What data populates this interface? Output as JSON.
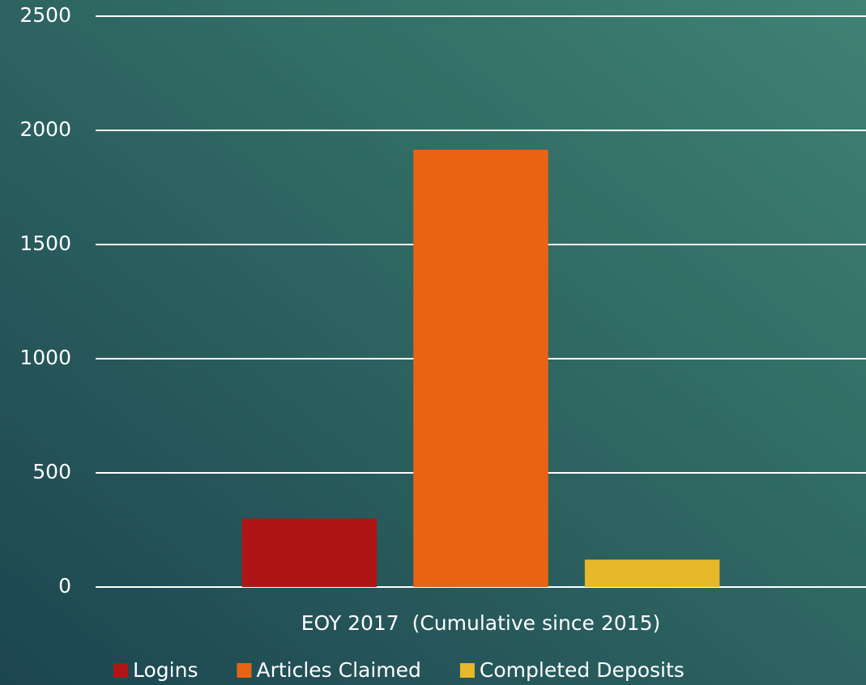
{
  "chart_data": {
    "type": "bar",
    "categories": [
      "EOY 2017  (Cumulative since 2015)"
    ],
    "series": [
      {
        "name": "Logins",
        "color": "#b01515",
        "values": [
          300
        ]
      },
      {
        "name": "Articles Claimed",
        "color": "#e86413",
        "values": [
          1915
        ]
      },
      {
        "name": "Completed Deposits",
        "color": "#e6b82a",
        "values": [
          120
        ]
      }
    ],
    "ylim": [
      0,
      2500
    ],
    "yticks": [
      0,
      500,
      1000,
      1500,
      2000,
      2500
    ],
    "grid": true,
    "legend": "bottom"
  }
}
